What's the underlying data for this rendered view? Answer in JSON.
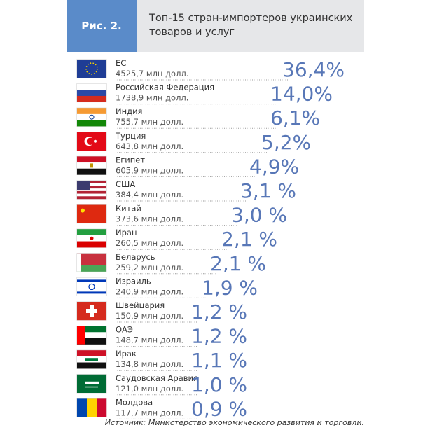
{
  "header": {
    "label": "Рис. 2.",
    "title": [
      "Топ-15 стран-импортеров украинских",
      "товаров и услуг"
    ]
  },
  "rows": [
    {
      "country": "ЕС",
      "amount": "4525,7 млн долл.",
      "share": "36,4%"
    },
    {
      "country": "Российская Федерация",
      "amount": "1738,9 млн долл.",
      "share": "14,0%"
    },
    {
      "country": "Индия",
      "amount": "755,7 млн долл.",
      "share": "6,1%"
    },
    {
      "country": "Турция",
      "amount": "643,8 млн долл.",
      "share": "5,2%"
    },
    {
      "country": "Египет",
      "amount": "605,9 млн долл.",
      "share": "4,9%"
    },
    {
      "country": "США",
      "amount": "384,4 млн долл.",
      "share": "3,1 %"
    },
    {
      "country": "Китай",
      "amount": "373,6 млн долл.",
      "share": "3,0 %"
    },
    {
      "country": "Иран",
      "amount": "260,5 млн долл.",
      "share": "2,1 %"
    },
    {
      "country": "Беларусь",
      "amount": "259,2 млн долл.",
      "share": "2,1 %"
    },
    {
      "country": "Израиль",
      "amount": "240,9 млн долл.",
      "share": "1,9 %"
    },
    {
      "country": "Швейцария",
      "amount": "150,9 млн долл.",
      "share": "1,2 %"
    },
    {
      "country": "ОАЭ",
      "amount": "148,7 млн долл.",
      "share": "1,2 %"
    },
    {
      "country": "Ирак",
      "amount": "134,8 млн долл.",
      "share": "1,1 %"
    },
    {
      "country": "Саудовская Аравия",
      "amount": "121,0 млн долл.",
      "share": "1,0 %"
    },
    {
      "country": "Молдова",
      "amount": "117,7 млн долл.",
      "share": "0,9 %"
    }
  ],
  "source": "Источник: Министерство экономического развития и торговли."
}
